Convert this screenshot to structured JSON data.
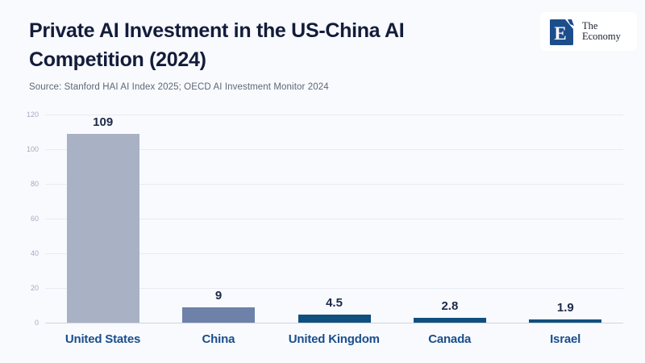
{
  "header": {
    "title_line1": "Private AI Investment in the US-China AI",
    "title_line2": "Competition (2024)",
    "source": "Source: Stanford HAI AI Index 2025; OECD AI Investment Monitor 2024"
  },
  "logo": {
    "letter": "E",
    "name_line1": "The",
    "name_line2": "Economy",
    "square_color": "#1d4e8c"
  },
  "colors": {
    "background": "#f8fafd",
    "title": "#131c3a",
    "source_text": "#5d6878",
    "value_label": "#1c2a4a",
    "category_label": "#1a4e8e",
    "gridline": "#e8ebf1",
    "baseline": "#cfd4de",
    "tick_label": "#a3acc0"
  },
  "chart_data": {
    "type": "bar",
    "title": "Private AI Investment in the US-China AI Competition (2024)",
    "categories": [
      "United States",
      "China",
      "United Kingdom",
      "Canada",
      "Israel"
    ],
    "values": [
      109,
      9,
      4.5,
      2.8,
      1.9
    ],
    "value_labels": [
      "109",
      "9",
      "4.5",
      "2.8",
      "1.9"
    ],
    "bar_colors": [
      "#a9b1c4",
      "#6e81a9",
      "#10507f",
      "#10507f",
      "#10507f"
    ],
    "xlabel": "",
    "ylabel": "",
    "ylim": [
      0,
      120
    ],
    "yticks": [
      0,
      20,
      40,
      60,
      80,
      100,
      120
    ],
    "grid": true,
    "legend": false
  }
}
